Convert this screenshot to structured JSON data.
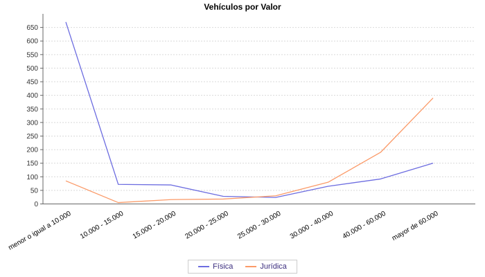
{
  "chart_data": {
    "type": "line",
    "title": "Vehículos por Valor",
    "categories": [
      "menor o igual a 10.000",
      "10.000 - 15.000",
      "15.000 - 20.000",
      "20.000 - 25.000",
      "25.000 - 30.000",
      "30.000 - 40.000",
      "40.000 - 60.000",
      "mayor de 60.000"
    ],
    "series": [
      {
        "name": "Física",
        "color": "#6C6CE0",
        "values": [
          670,
          72,
          70,
          28,
          24,
          65,
          92,
          150
        ]
      },
      {
        "name": "Jurídica",
        "color": "#FB9A68",
        "values": [
          85,
          5,
          16,
          18,
          30,
          80,
          190,
          390
        ]
      }
    ],
    "xlabel": "",
    "ylabel": "",
    "ylim": [
      0,
      700
    ],
    "yticks": {
      "min": 0,
      "max": 650,
      "step": 50
    },
    "grid": true,
    "legend_position": "bottom",
    "colors": {
      "background": "#FFFFFF",
      "gridline": "#D9D9D9",
      "axis": "#666666",
      "tick_label": "#333333",
      "category_label": "#000000",
      "legend_text": "#3B2D7E",
      "legend_border": "#CCCCCC"
    }
  }
}
